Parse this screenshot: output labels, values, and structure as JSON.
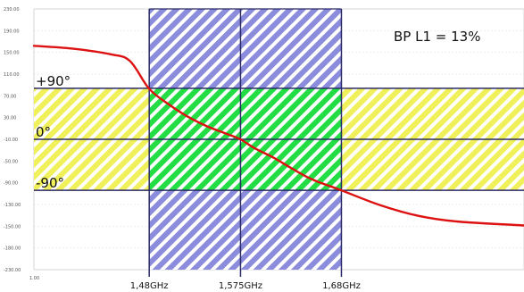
{
  "chart_data": {
    "type": "line",
    "title": "",
    "annotation": "BP L1 = 13%",
    "xlim": [
      1.36,
      1.87
    ],
    "ylim": [
      -230,
      230
    ],
    "y_ticks": [
      "230.00",
      "190.00",
      "150.00",
      "110.00",
      "70.00",
      "30.00",
      "-10.00",
      "-50.00",
      "-90.00",
      "-130.00",
      "-150.00",
      "-180.00",
      "-230.00"
    ],
    "x_tick_label": "1.00",
    "bands": [
      {
        "name": "+90°",
        "y": 90
      },
      {
        "name": "0°",
        "y": 0
      },
      {
        "name": "-90°",
        "y": -90
      }
    ],
    "freq_markers": [
      {
        "label": "1,48GHz",
        "x": 1.48
      },
      {
        "label": "1,575GHz",
        "x": 1.575
      },
      {
        "label": "1,68GHz",
        "x": 1.68
      }
    ],
    "series": [
      {
        "color": "#dd1111",
        "x": [
          1.36,
          1.4,
          1.44,
          1.46,
          1.48,
          1.5,
          1.52,
          1.54,
          1.56,
          1.575,
          1.59,
          1.61,
          1.63,
          1.65,
          1.68,
          1.72,
          1.76,
          1.8,
          1.87
        ],
        "y": [
          165,
          160,
          150,
          138,
          89,
          62,
          40,
          23,
          10,
          0,
          -16,
          -33,
          -53,
          -71,
          -90,
          -116,
          -135,
          -145,
          -152
        ]
      }
    ],
    "colors": {
      "yellow_band": "#f0f05a",
      "blue_band": "#8c8cdc",
      "overlap": "#22dd44",
      "hatch": "#ffffff",
      "lines": "#2a2a66",
      "curve": "#dd1111"
    }
  }
}
